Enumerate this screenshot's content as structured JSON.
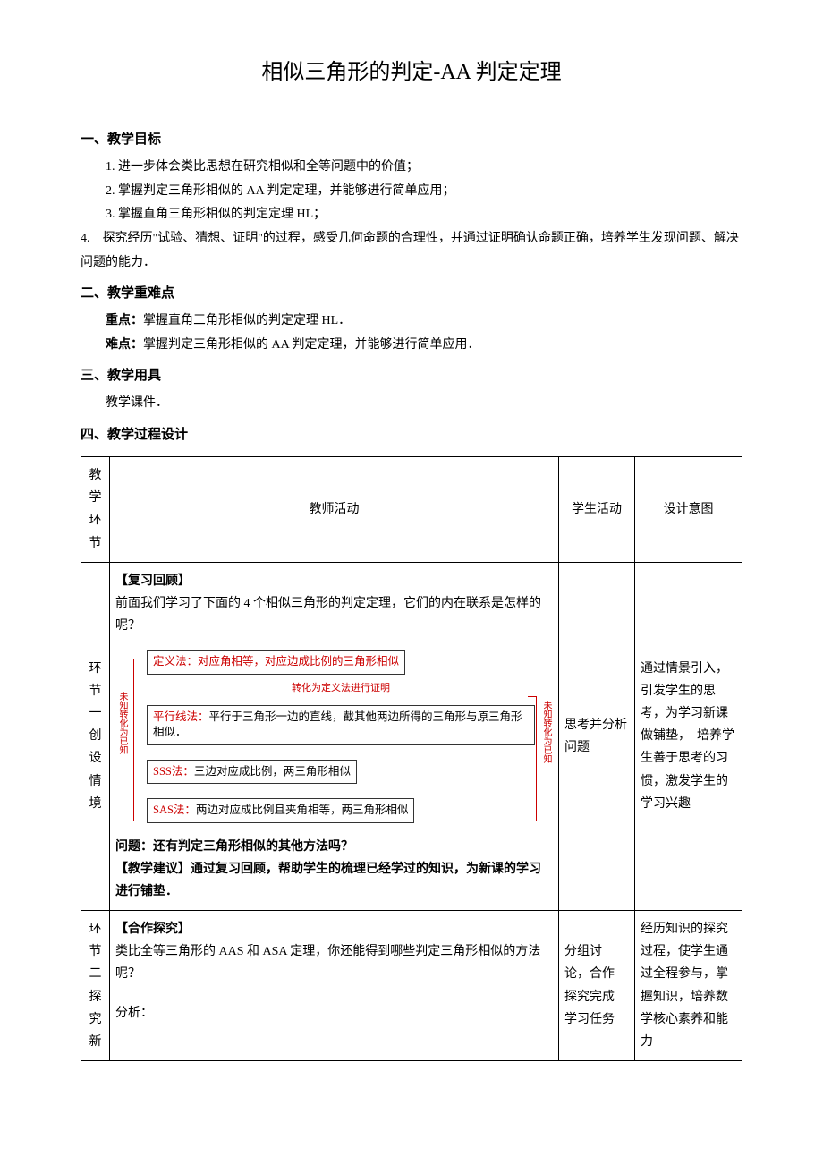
{
  "title": "相似三角形的判定-AA 判定定理",
  "sections": {
    "goals": {
      "heading": "一、教学目标",
      "items": [
        "1. 进一步体会类比思想在研究相似和全等问题中的价值；",
        "2. 掌握判定三角形相似的 AA 判定定理，并能够进行简单应用；",
        "3. 掌握直角三角形相似的判定定理 HL；",
        "4.　探究经历\"试验、猜想、证明\"的过程，感受几何命题的合理性，并通过证明确认命题正确，培养学生发现问题、解决问题的能力．"
      ]
    },
    "difficulties": {
      "heading": "二、教学重难点",
      "key_point_label": "重点：",
      "key_point": "掌握直角三角形相似的判定定理 HL．",
      "hard_point_label": "难点：",
      "hard_point": "掌握判定三角形相似的 AA 判定定理，并能够进行简单应用．"
    },
    "tools": {
      "heading": "三、教学用具",
      "content": "教学课件．"
    },
    "process": {
      "heading": "四、教学过程设计"
    }
  },
  "table": {
    "headers": {
      "col1": "教学环节",
      "col2": "教师活动",
      "col3": "学生活动",
      "col4": "设计意图"
    },
    "row1": {
      "col1": "环节一创设情境",
      "review_label": "【复习回顾】",
      "intro1": "前面我们学习了下面的 4 个相似三角形的判定定理，它们的内在联系是怎样的呢？",
      "diagram": {
        "left_label": "未知转化为已知",
        "right_label": "未知转化为已知",
        "method1_label": "定义法：",
        "method1_text": "对应角相等，对应边成比例的三角形相似",
        "sub_text": "转化为定义法进行证明",
        "method2_label": "平行线法：",
        "method2_text": "平行于三角形一边的直线，截其他两边所得的三角形与原三角形相似．",
        "method3_label": "SSS法：",
        "method3_text": "三边对应成比例，两三角形相似",
        "method4_label": "SAS法：",
        "method4_text": "两边对应成比例且夹角相等，两三角形相似"
      },
      "question_label": "问题：",
      "question": "还有判定三角形相似的其他方法吗？",
      "suggestion_label": "【教学建议】",
      "suggestion": "通过复习回顾，帮助学生的梳理已经学过的知识，为新课的学习进行铺垫．",
      "col3": "思考并分析问题",
      "col4": "通过情景引入，引发学生的思考，为学习新课做铺垫，　培养学生善于思考的习惯，激发学生的学习兴趣"
    },
    "row2": {
      "col1": "环节二探究新",
      "explore_label": "【合作探究】",
      "explore_text": "类比全等三角形的 AAS 和 ASA 定理，你还能得到哪些判定三角形相似的方法呢？",
      "analysis_label": "分析：",
      "col3": "分组讨 论，合作 探究完成 学习任务",
      "col4": "经历知识的探究过程，使学生通过全程参与，掌握知识，培养数学核心素养和能力"
    }
  }
}
